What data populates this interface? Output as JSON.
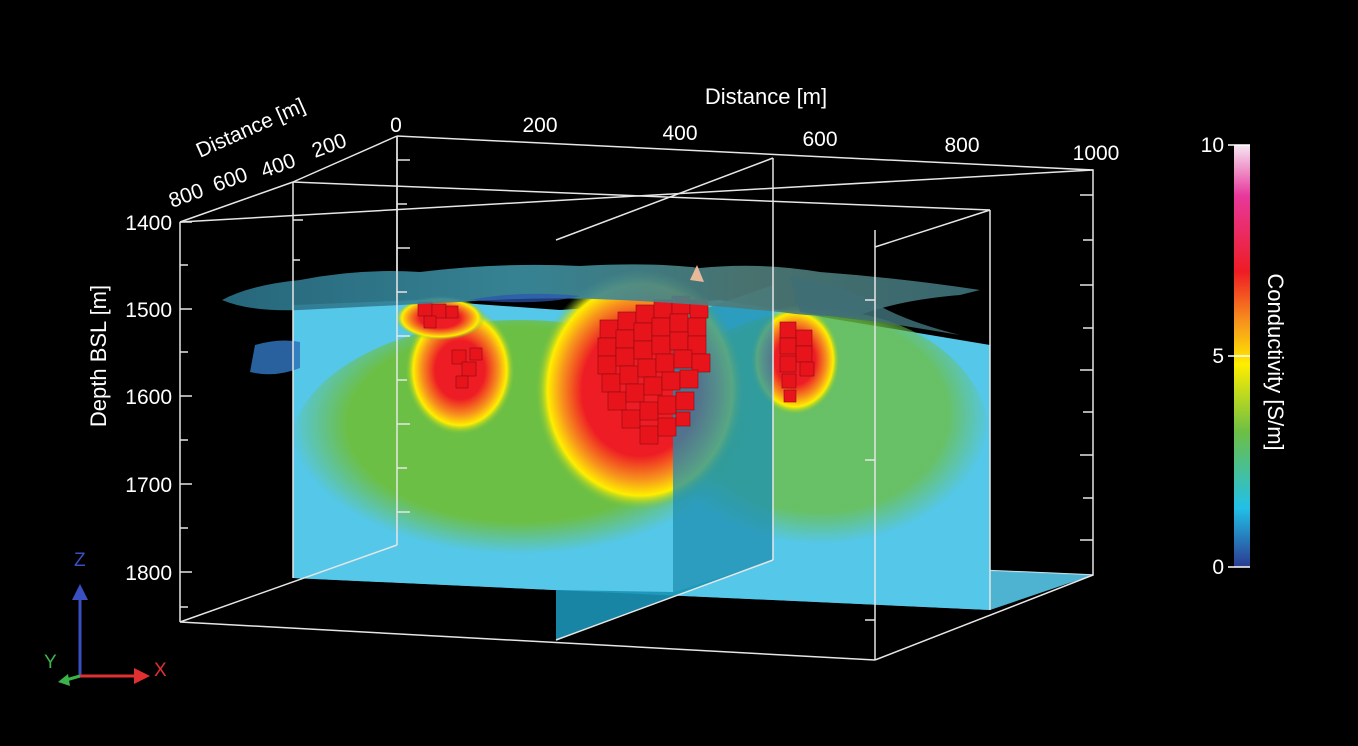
{
  "axes": {
    "x_title": "Distance [m]",
    "x_ticks": [
      "0",
      "200",
      "400",
      "600",
      "800",
      "1000"
    ],
    "y_title": "Distance [m]",
    "y_ticks": [
      "200",
      "400",
      "600",
      "800"
    ],
    "z_title": "Depth BSL [m]",
    "z_ticks": [
      "1400",
      "1500",
      "1600",
      "1700",
      "1800"
    ]
  },
  "colorbar": {
    "title": "Conductivity [S/m]",
    "ticks": [
      "10",
      "5",
      "0"
    ],
    "colors": [
      "#f6e6f2",
      "#e8389c",
      "#ee1c24",
      "#f7941d",
      "#ffee00",
      "#6cbf45",
      "#22c0e8",
      "#2b3a90"
    ]
  },
  "triad": {
    "z": "Z",
    "y": "Y",
    "x": "X"
  }
}
